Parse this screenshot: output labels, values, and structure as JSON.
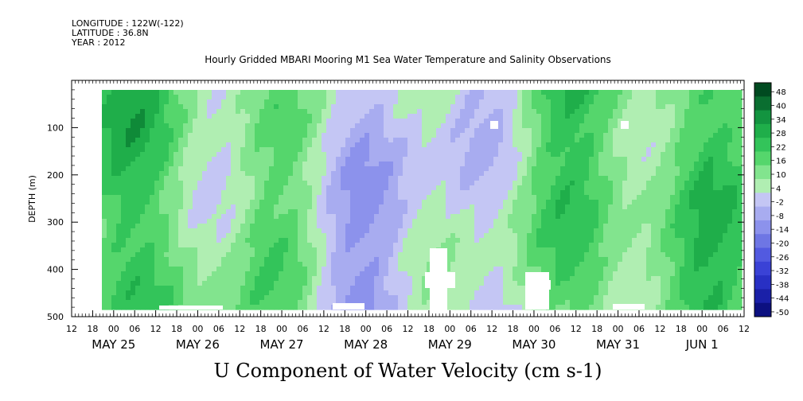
{
  "header": {
    "longitude": "LONGITUDE : 122W(-122)",
    "latitude": "LATITUDE : 36.8N",
    "year": "YEAR : 2012",
    "title": "Hourly Gridded MBARI Mooring M1 Sea Water Temperature and Salinity Observations"
  },
  "chart_data": {
    "type": "heatmap",
    "title": "Hourly Gridded MBARI Mooring M1 Sea Water Temperature and Salinity Observations",
    "variable_label": "U Component of Water Velocity (cm s-1)",
    "ylabel": "DEPTH (m)",
    "ylim": [
      500,
      0
    ],
    "y_ticks": [
      100,
      200,
      300,
      400,
      500
    ],
    "x_hour_ticks": [
      "12",
      "18",
      "00",
      "06",
      "12",
      "18",
      "00",
      "06",
      "12",
      "18",
      "00",
      "06",
      "12",
      "18",
      "00",
      "06",
      "12",
      "18",
      "00",
      "06",
      "12",
      "18",
      "00",
      "06",
      "12",
      "18",
      "00",
      "06",
      "12",
      "18",
      "00",
      "06",
      "12"
    ],
    "x_day_labels": [
      "MAY 25",
      "MAY 26",
      "MAY 27",
      "MAY 28",
      "MAY 29",
      "MAY 30",
      "MAY 31",
      "JUN  1"
    ],
    "colorbar_levels": [
      "48",
      "40",
      "34",
      "28",
      "22",
      "16",
      "10",
      "4",
      "-2",
      "-8",
      "-14",
      "-20",
      "-26",
      "-32",
      "-38",
      "-44",
      "-50"
    ],
    "colorbar_colors": [
      "#004a20",
      "#0a6e30",
      "#139440",
      "#1fae4a",
      "#33c45a",
      "#55d66c",
      "#82e48e",
      "#b0eeb2",
      "#c4c6f4",
      "#a8acf0",
      "#8c92ec",
      "#6e76e4",
      "#525ae0",
      "#3a42d6",
      "#2830c4",
      "#1a20a8",
      "#0c1080"
    ],
    "depth_levels_m": [
      20,
      40,
      60,
      80,
      100,
      120,
      140,
      160,
      180,
      200,
      220,
      240,
      260,
      280,
      300,
      320,
      340,
      360,
      380,
      400,
      420,
      440,
      460,
      480
    ],
    "time_span": "May 25 18:00 to Jun 1 12:00, 2012"
  }
}
